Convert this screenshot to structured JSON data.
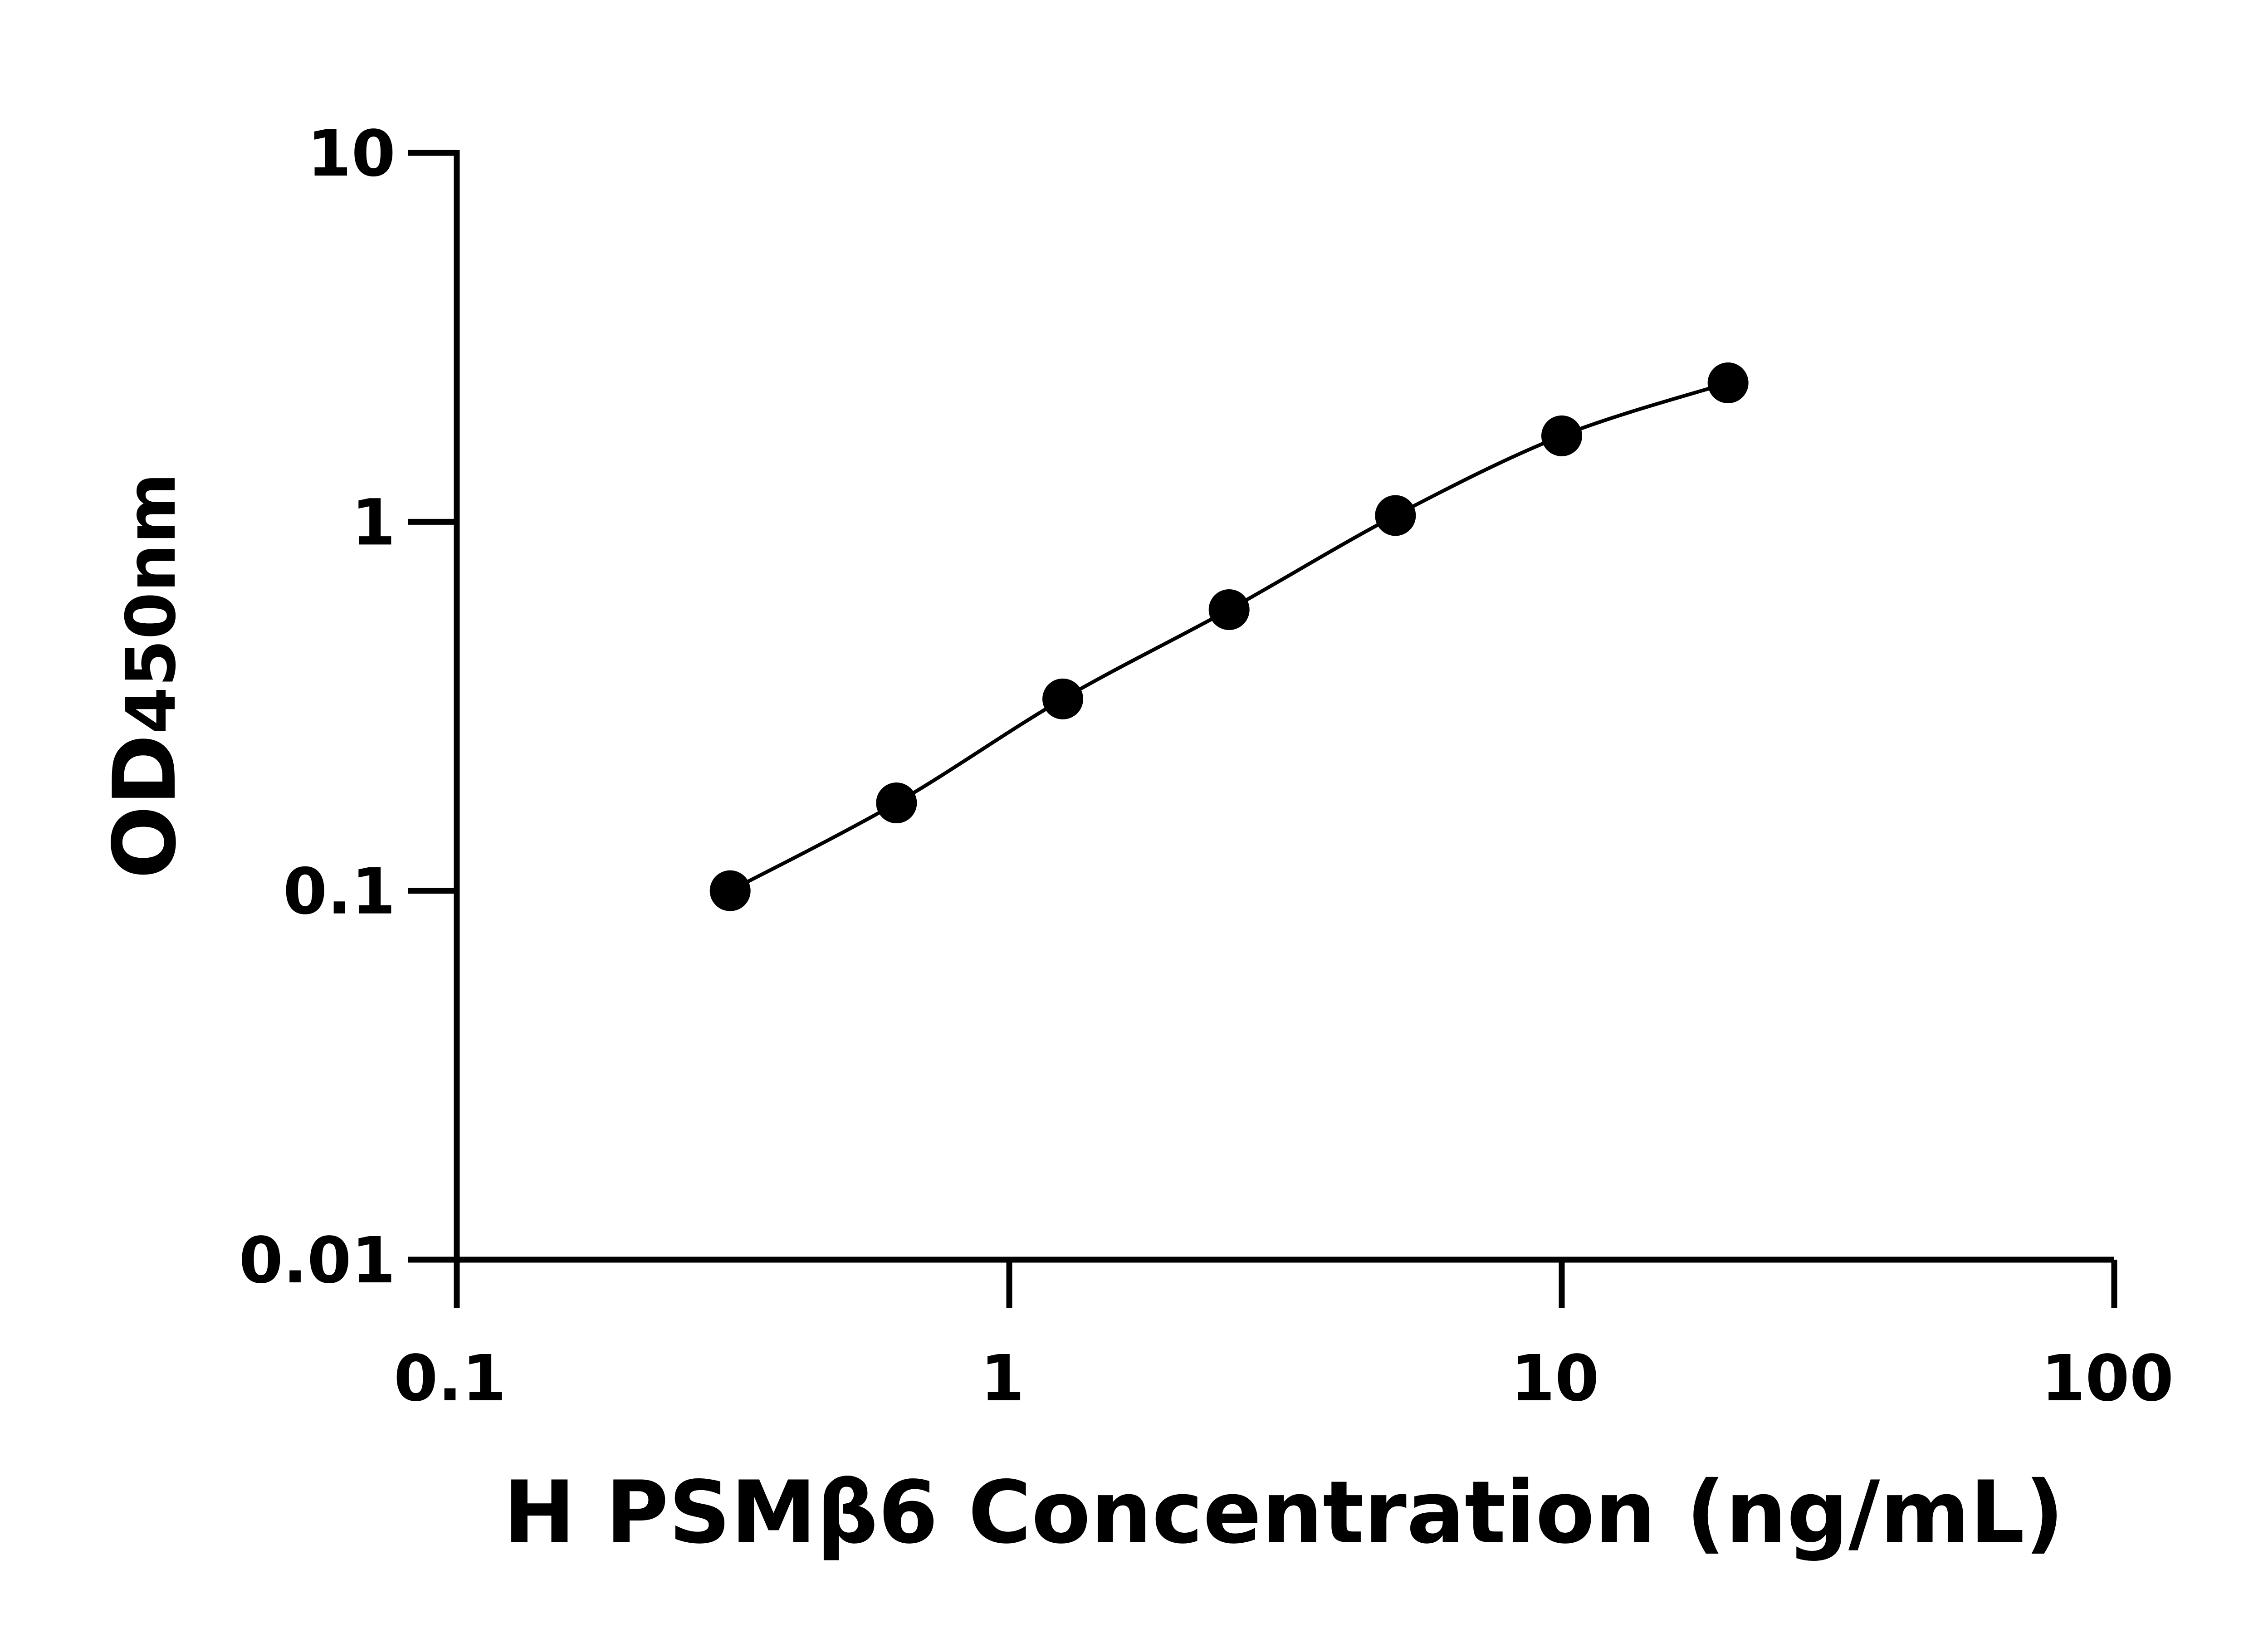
{
  "chart_data": {
    "type": "line",
    "title": "",
    "xlabel": "H PSMβ6 Concentration (ng/mL)",
    "ylabel_main": "OD",
    "ylabel_sub": "450nm",
    "x_scale": "log",
    "y_scale": "log",
    "xlim": [
      0.1,
      100
    ],
    "ylim": [
      0.01,
      10
    ],
    "x_ticks": [
      "0.1",
      "1",
      "10",
      "100"
    ],
    "y_ticks": [
      "0.01",
      "0.1",
      "1",
      "10"
    ],
    "grid": false,
    "legend": "none",
    "color": "#000000",
    "series": [
      {
        "x": [
          0.3125,
          0.625,
          1.25,
          2.5,
          5,
          10,
          20
        ],
        "y": [
          0.1,
          0.173,
          0.331,
          0.578,
          1.04,
          1.71,
          2.38
        ]
      }
    ]
  }
}
